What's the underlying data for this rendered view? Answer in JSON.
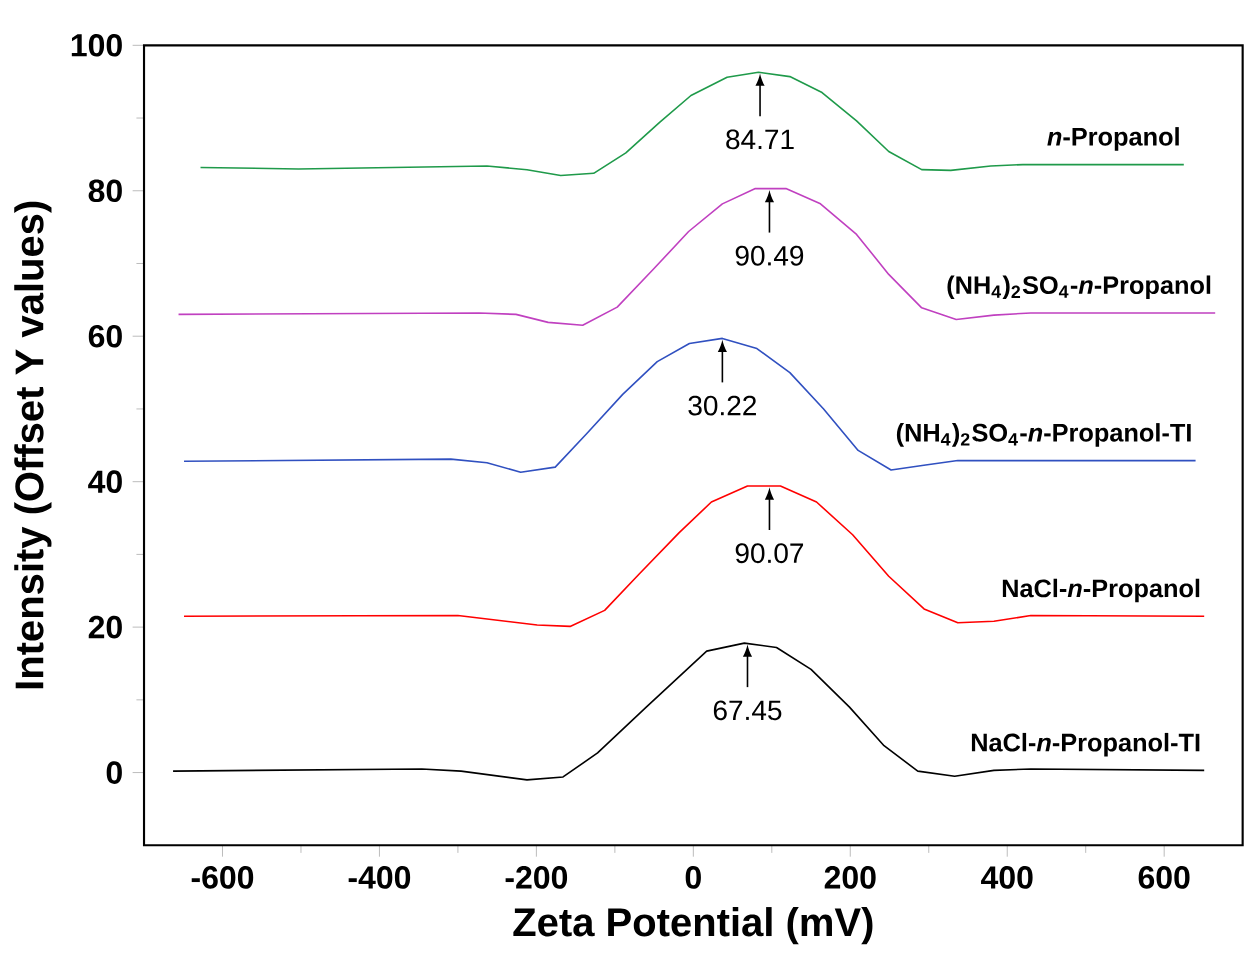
{
  "chart_data": {
    "type": "line",
    "xlabel": "Zeta Potential (mV)",
    "ylabel": "Intensity (Offset Y values)",
    "xlim": [
      -700,
      700
    ],
    "ylim": [
      -10,
      100
    ],
    "xticks": [
      -600,
      -400,
      -200,
      0,
      200,
      400,
      600
    ],
    "yticks": [
      0,
      20,
      40,
      60,
      80,
      100
    ],
    "legend": false,
    "grid": false,
    "marker": "none",
    "line_style": "solid",
    "series": [
      {
        "name": "NaCl-*n*-Propanol-TI",
        "color": "#000000",
        "x": [
          -663,
          -346,
          -296,
          -212,
          -166,
          -122,
          -60,
          17,
          65,
          106,
          150,
          199,
          243,
          286,
          333,
          383,
          430,
          651
        ],
        "values": [
          0.2,
          0.5,
          0.2,
          -1,
          -0.6,
          2.7,
          9,
          16.7,
          17.8,
          17.2,
          14.2,
          9,
          3.7,
          0.2,
          -0.5,
          0.3,
          0.5,
          0.3
        ]
      },
      {
        "name": "NaCl-*n*-Propanol",
        "color": "#ff0000",
        "x": [
          -649,
          -300,
          -199,
          -157,
          -113,
          -69,
          -18,
          23,
          69,
          111,
          157,
          203,
          249,
          294,
          337,
          383,
          430,
          651
        ],
        "values": [
          21.5,
          21.6,
          20.3,
          20.1,
          22.3,
          27.3,
          33,
          37.2,
          39.4,
          39.4,
          37.2,
          32.7,
          27,
          22.5,
          20.6,
          20.8,
          21.6,
          21.5
        ]
      },
      {
        "name": "(NH$_{4}$)$_{2}$SO$_{4}$-*n*-Propanol-TI",
        "color": "#3050c0",
        "x": [
          -649,
          -309,
          -263,
          -220,
          -176,
          -136,
          -90,
          -46,
          -5,
          37,
          81,
          123,
          166,
          210,
          252,
          296,
          337,
          640
        ],
        "values": [
          42.8,
          43.1,
          42.6,
          41.3,
          42,
          46.6,
          52,
          56.5,
          59,
          59.7,
          58.3,
          55,
          50,
          44.3,
          41.6,
          42.3,
          42.9,
          42.9
        ]
      },
      {
        "name": "(NH$_{4}$)$_{2}$SO$_{4}$-*n*-Propanol",
        "color": "#c040c0",
        "x": [
          -656,
          -273,
          -226,
          -185,
          -141,
          -97,
          -51,
          -6,
          37,
          79,
          118,
          162,
          208,
          249,
          291,
          335,
          383,
          430,
          665
        ],
        "values": [
          63,
          63.2,
          63,
          61.9,
          61.5,
          64,
          69.2,
          74.4,
          78.2,
          80.3,
          80.3,
          78.2,
          74,
          68.5,
          63.9,
          62.3,
          62.9,
          63.2,
          63.2
        ]
      },
      {
        "name": "*n*-Propanol",
        "color": "#1f9a4a",
        "x": [
          -628,
          -503,
          -263,
          -212,
          -169,
          -127,
          -86,
          -43,
          -3,
          43,
          83,
          123,
          164,
          208,
          249,
          291,
          328,
          379,
          420,
          625
        ],
        "values": [
          83.2,
          83,
          83.4,
          82.9,
          82.1,
          82.4,
          85.2,
          89.4,
          93.1,
          95.6,
          96.3,
          95.7,
          93.5,
          89.6,
          85.4,
          82.9,
          82.8,
          83.4,
          83.6,
          83.6
        ]
      }
    ],
    "annotations": [
      {
        "text": "67.45",
        "x": 69,
        "y": 17.8
      },
      {
        "text": "90.07",
        "x": 97,
        "y": 39.4
      },
      {
        "text": "30.22",
        "x": 37,
        "y": 59.7
      },
      {
        "text": "90.49",
        "x": 97,
        "y": 80.3
      },
      {
        "text": "84.71",
        "x": 85,
        "y": 96.3
      }
    ]
  }
}
